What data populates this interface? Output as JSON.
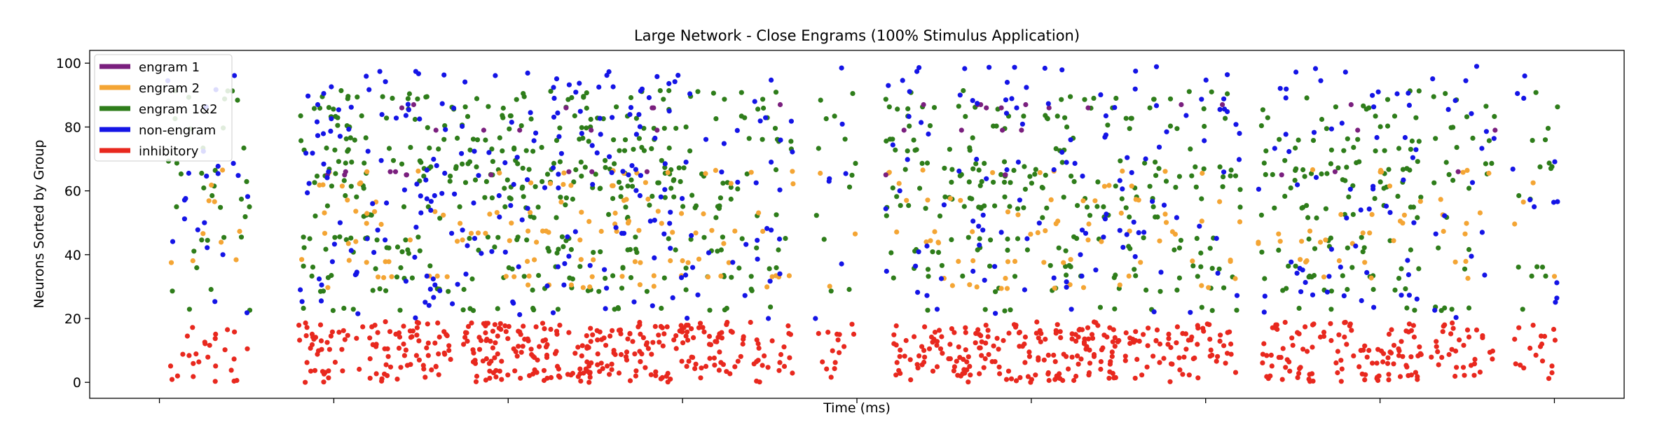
{
  "chart_data": {
    "type": "scatter",
    "title": "Large Network - Close Engrams (100% Stimulus Application)",
    "xlabel": "Time (ms)",
    "ylabel": "Neurons Sorted by Group",
    "ylim": [
      -5,
      104
    ],
    "xlim": [
      -200,
      4200
    ],
    "y_ticks": [
      0,
      20,
      40,
      60,
      80,
      100
    ],
    "x_ticks": [
      0,
      500,
      1000,
      1500,
      2000,
      2500,
      3000,
      3500,
      4000
    ],
    "x_tick_labels_shown": false,
    "grid": false,
    "legend_position": "top-left",
    "series": [
      {
        "name": "engram 1",
        "color": "#7a1f7e",
        "y_range": [
          65,
          87
        ],
        "values": []
      },
      {
        "name": "engram 2",
        "color": "#f4a534",
        "y_range": [
          30,
          66
        ],
        "values": []
      },
      {
        "name": "engram 1&2",
        "color": "#2e7d1a",
        "y_range": [
          20,
          91
        ],
        "values": []
      },
      {
        "name": "non-engram",
        "color": "#1414e6",
        "y_range": [
          20,
          99
        ],
        "values": []
      },
      {
        "name": "inhibitory",
        "color": "#e8281e",
        "y_range": [
          0,
          19
        ],
        "values": []
      }
    ],
    "activity_bursts_ms": [
      {
        "x0": 20,
        "x1": 260,
        "density": 0.45
      },
      {
        "x0": 400,
        "x1": 1050,
        "density": 1.0
      },
      {
        "x0": 1050,
        "x1": 1600,
        "density": 0.95
      },
      {
        "x0": 1600,
        "x1": 1820,
        "density": 0.7
      },
      {
        "x0": 1880,
        "x1": 2000,
        "density": 0.45
      },
      {
        "x0": 2080,
        "x1": 2600,
        "density": 0.85
      },
      {
        "x0": 2600,
        "x1": 3100,
        "density": 0.8
      },
      {
        "x0": 3150,
        "x1": 3620,
        "density": 0.85
      },
      {
        "x0": 3640,
        "x1": 3830,
        "density": 0.55
      },
      {
        "x0": 3880,
        "x1": 4010,
        "density": 0.45
      }
    ]
  }
}
